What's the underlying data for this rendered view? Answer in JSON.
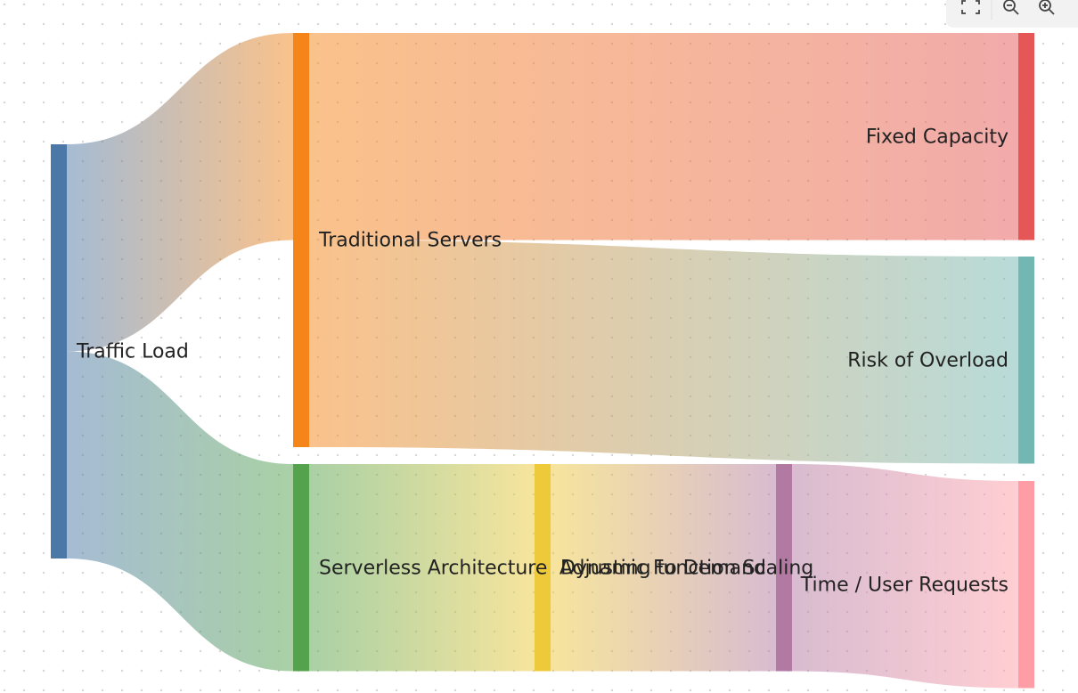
{
  "chart_data": {
    "type": "sankey",
    "nodes": [
      {
        "label": "Traffic Load",
        "color": "#4c78a8"
      },
      {
        "label": "Traditional Servers",
        "color": "#f58518"
      },
      {
        "label": "Serverless Architecture",
        "color": "#54a24b"
      },
      {
        "label": "Dynamic Function Scaling",
        "color": "#eeca3b"
      },
      {
        "label": "Adjusting to Demand",
        "color": "#b279a2"
      },
      {
        "label": "Fixed Capacity",
        "color": "#e45756"
      },
      {
        "label": "Risk of Overload",
        "color": "#72b7b2"
      },
      {
        "label": "Time / User Requests",
        "color": "#ff9da6"
      }
    ],
    "links": [
      {
        "source": 0,
        "target": 1,
        "value": 50
      },
      {
        "source": 0,
        "target": 2,
        "value": 50
      },
      {
        "source": 1,
        "target": 5,
        "value": 50
      },
      {
        "source": 1,
        "target": 6,
        "value": 50
      },
      {
        "source": 2,
        "target": 3,
        "value": 50
      },
      {
        "source": 3,
        "target": 4,
        "value": 50
      },
      {
        "source": 4,
        "target": 7,
        "value": 50
      }
    ]
  }
}
